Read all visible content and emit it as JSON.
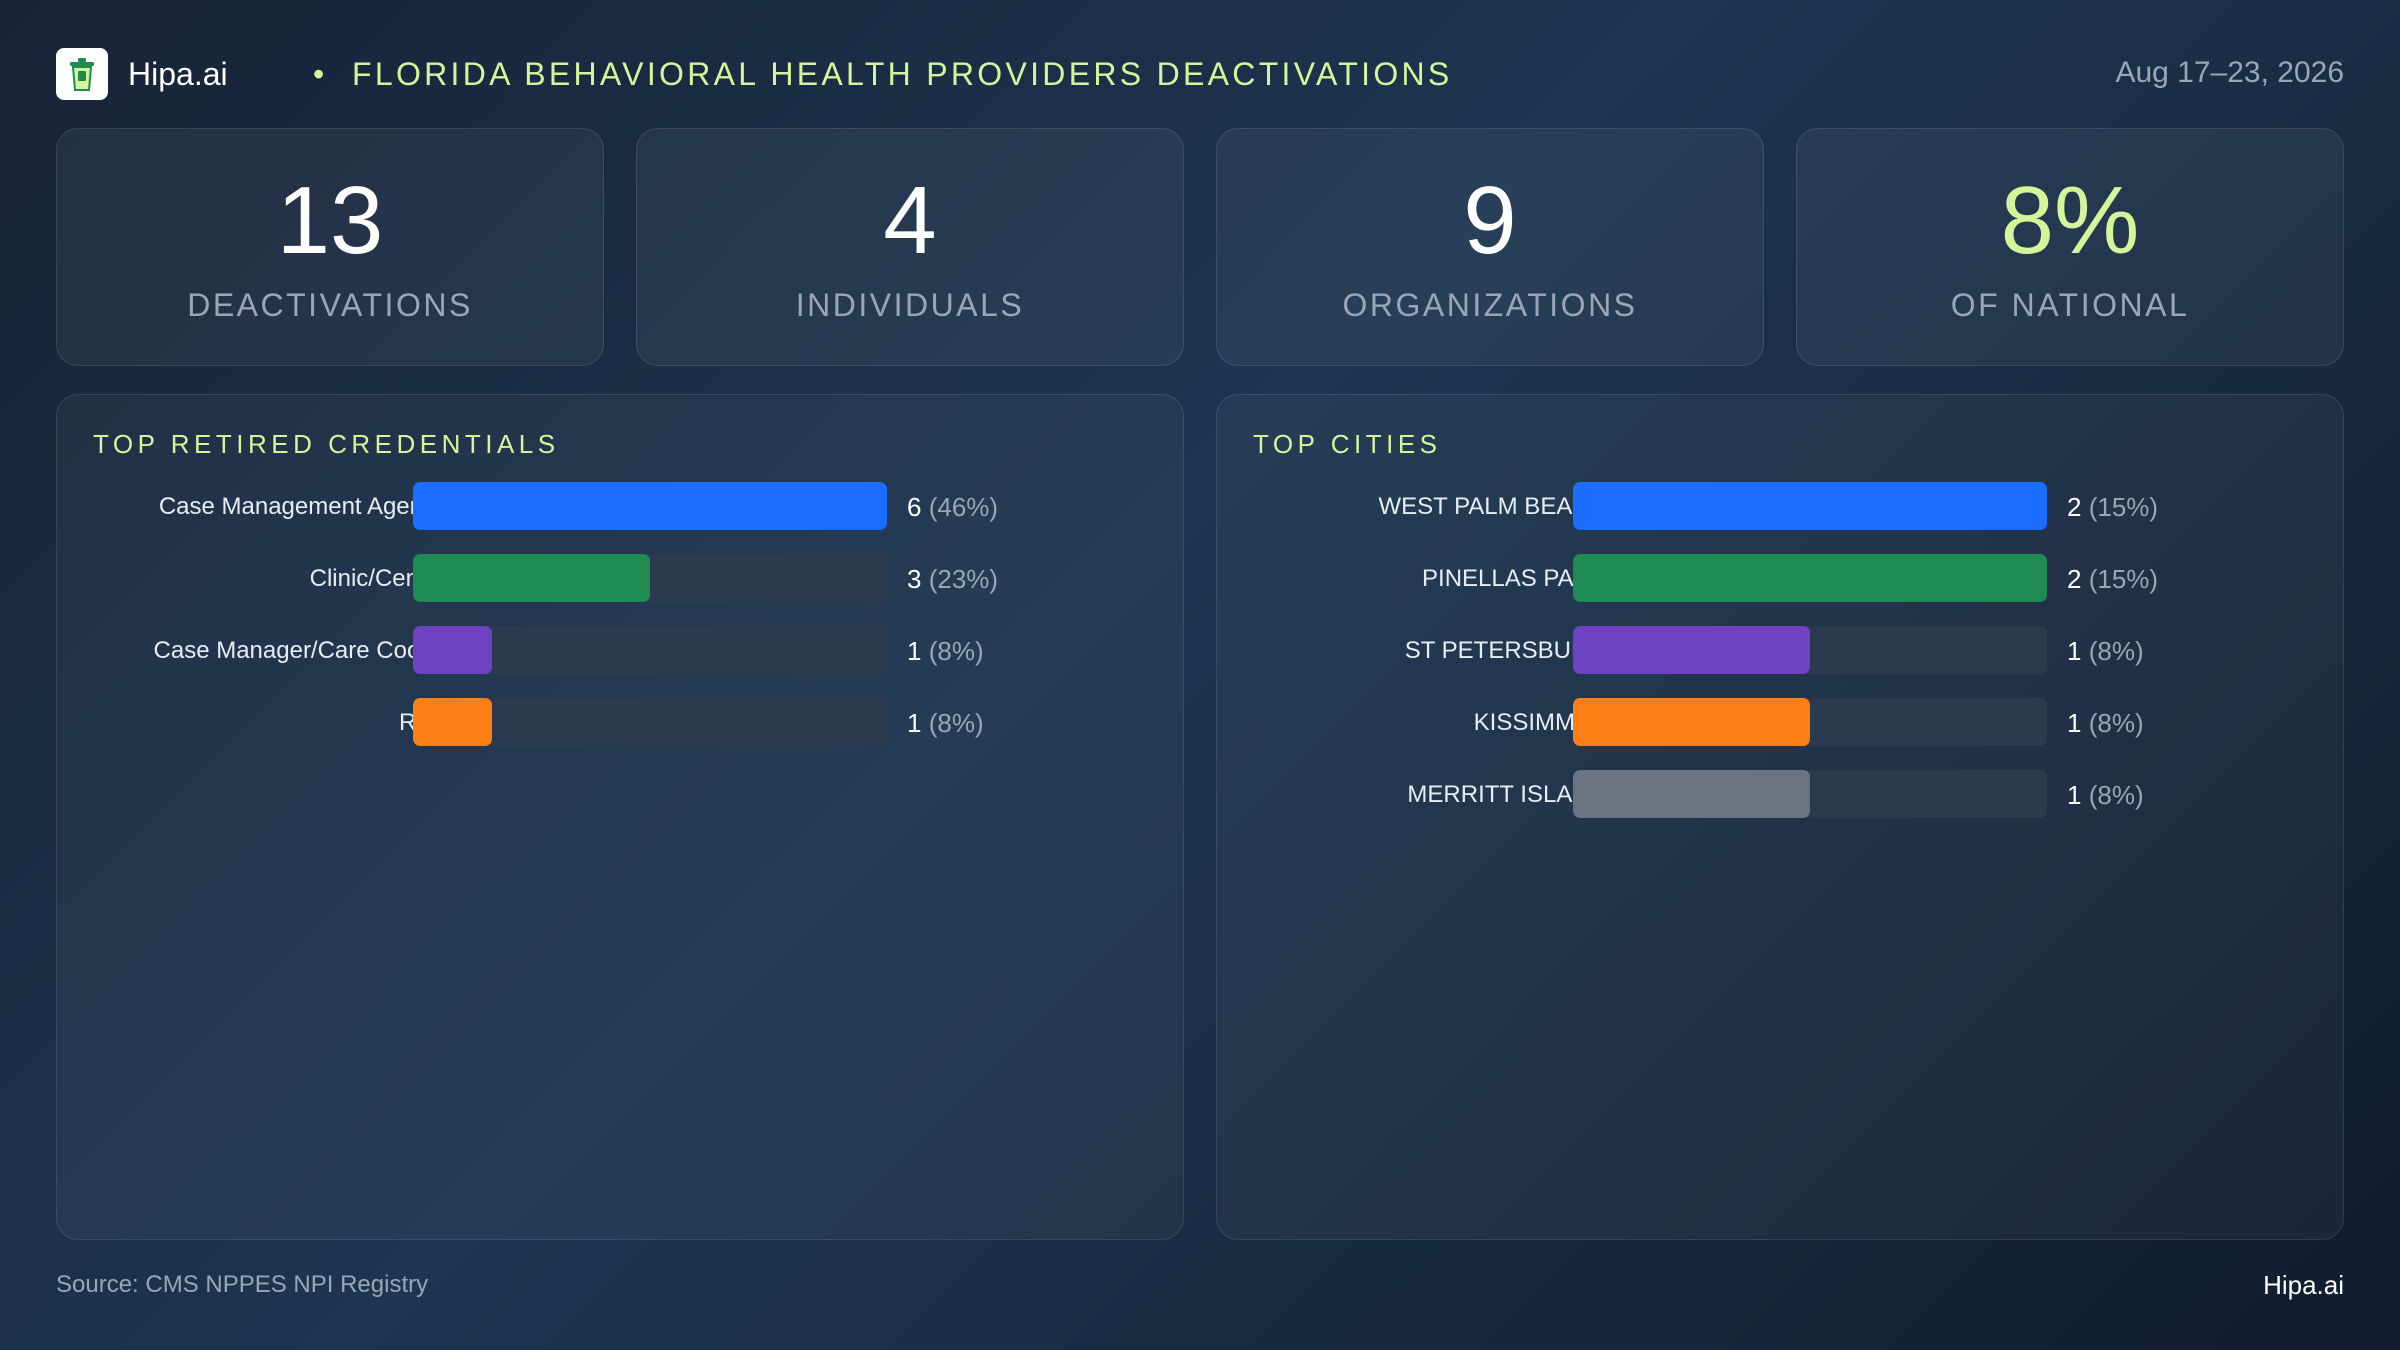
{
  "header": {
    "brand": "Hipa.ai",
    "separator": "•",
    "title": "FLORIDA BEHAVIORAL HEALTH PROVIDERS DEACTIVATIONS",
    "date_range": "Aug 17–23, 2026"
  },
  "kpis": [
    {
      "value": "13",
      "label": "DEACTIVATIONS"
    },
    {
      "value": "4",
      "label": "INDIVIDUALS"
    },
    {
      "value": "9",
      "label": "ORGANIZATIONS"
    },
    {
      "value": "8%",
      "label": "OF NATIONAL"
    }
  ],
  "colors": {
    "accent": "#d5f59a",
    "blue": "#1a6dff",
    "green": "#1f8a52",
    "purple": "#6f42c1",
    "orange": "#fd7e14",
    "gray": "#6b7280"
  },
  "chart_data": [
    {
      "type": "bar",
      "orientation": "horizontal",
      "title": "TOP RETIRED CREDENTIALS",
      "categories": [
        "Case Management Agency",
        "Clinic/Center",
        "Case Manager/Care Coor...",
        "RBT"
      ],
      "values": [
        6,
        3,
        1,
        1
      ],
      "labels": [
        "(46%)",
        "(23%)",
        "(8%)",
        "(8%)"
      ],
      "colors": [
        "#1a6dff",
        "#1f8a52",
        "#6f42c1",
        "#fd7e14"
      ],
      "xlim": [
        0,
        6
      ]
    },
    {
      "type": "bar",
      "orientation": "horizontal",
      "title": "TOP CITIES",
      "categories": [
        "WEST PALM BEACH",
        "PINELLAS PARK",
        "ST PETERSBURG",
        "KISSIMMEE",
        "MERRITT ISLAND"
      ],
      "values": [
        2,
        2,
        1,
        1,
        1
      ],
      "labels": [
        "(15%)",
        "(15%)",
        "(8%)",
        "(8%)",
        "(8%)"
      ],
      "colors": [
        "#1a6dff",
        "#1f8a52",
        "#6f42c1",
        "#fd7e14",
        "#6b7280"
      ],
      "xlim": [
        0,
        2
      ]
    }
  ],
  "footer": {
    "source": "Source: CMS NPPES NPI Registry",
    "brand": "Hipa.ai"
  }
}
